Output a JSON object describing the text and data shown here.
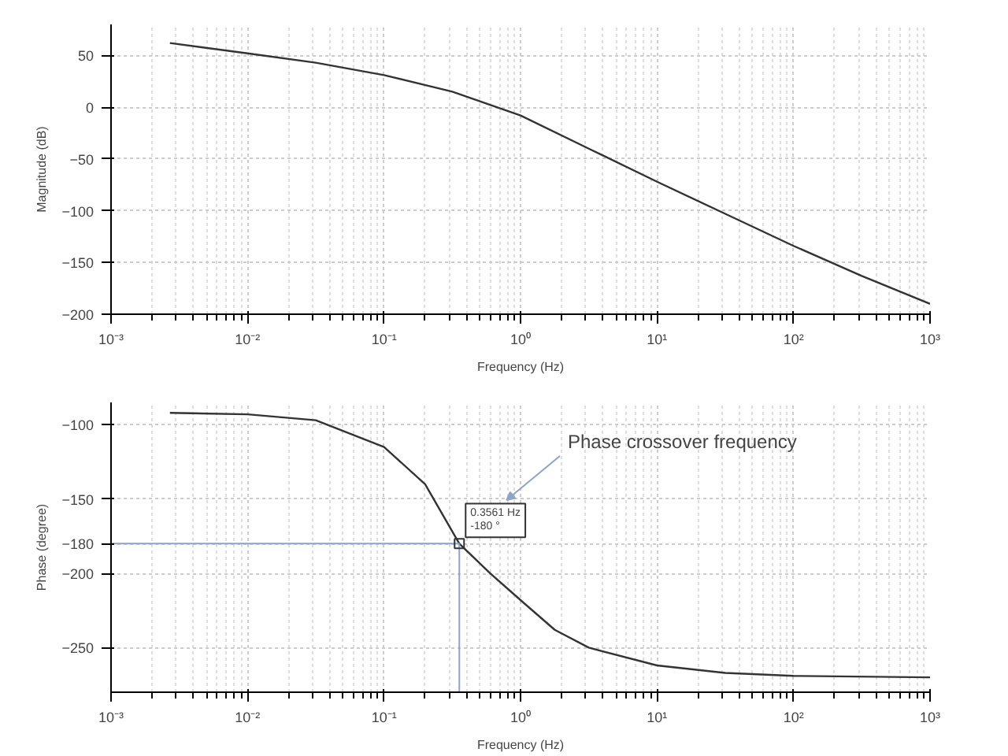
{
  "chart_data": [
    {
      "type": "line",
      "xlabel": "Frequency (Hz)",
      "ylabel": "Magnitude (dB)",
      "log": "x",
      "grid": true,
      "marker": "none",
      "line_style": "solid",
      "xlim": [
        0.001,
        1000
      ],
      "ylim": [
        -200,
        80
      ],
      "xticks": [
        {
          "value": 0.001,
          "label": "10⁻³"
        },
        {
          "value": 0.01,
          "label": "10⁻²"
        },
        {
          "value": 0.1,
          "label": "10⁻¹"
        },
        {
          "value": 1,
          "label": "10⁰"
        },
        {
          "value": 10,
          "label": "10¹"
        },
        {
          "value": 100,
          "label": "10²"
        },
        {
          "value": 1000,
          "label": "10³"
        }
      ],
      "yticks": [
        -200,
        -150,
        -100,
        -50,
        0,
        50
      ],
      "x": [
        0.0027,
        0.01,
        0.0316,
        0.1,
        0.316,
        1,
        3.16,
        10,
        31.6,
        100,
        316,
        1000
      ],
      "series": [
        {
          "color": "#333333",
          "values": [
            62,
            52,
            43,
            31,
            15,
            -8,
            -40,
            -72,
            -103,
            -134,
            -163,
            -190
          ]
        }
      ]
    },
    {
      "type": "line",
      "xlabel": "Frequency (Hz)",
      "ylabel": "Phase (degree)",
      "log": "x",
      "grid": true,
      "marker": "none",
      "line_style": "solid",
      "xlim": [
        0.001,
        1000
      ],
      "ylim": [
        -280,
        -85
      ],
      "xticks": [
        {
          "value": 0.001,
          "label": "10⁻³"
        },
        {
          "value": 0.01,
          "label": "10⁻²"
        },
        {
          "value": 0.1,
          "label": "10⁻¹"
        },
        {
          "value": 1,
          "label": "10⁰"
        },
        {
          "value": 10,
          "label": "10¹"
        },
        {
          "value": 100,
          "label": "10²"
        },
        {
          "value": 1000,
          "label": "10³"
        }
      ],
      "yticks": [
        -250,
        -200,
        -180,
        -150,
        -100
      ],
      "x": [
        0.0027,
        0.01,
        0.0316,
        0.1,
        0.2,
        0.3561,
        0.6,
        1,
        1.78,
        3.16,
        10,
        31.6,
        100,
        1000
      ],
      "series": [
        {
          "color": "#333333",
          "values": [
            -92,
            -93,
            -97,
            -115,
            -140,
            -180,
            -200,
            -218,
            -238,
            -250,
            -262,
            -267,
            -269,
            -270
          ]
        }
      ],
      "ref_lines": [
        {
          "axis": "x",
          "value": 0.3561,
          "color": "#8fa2c8"
        },
        {
          "axis": "y",
          "value": -180,
          "color": "#8fa2c8"
        }
      ],
      "annotations": [
        {
          "text": "0.3561 Hz\n-180 °",
          "x": 0.3561,
          "y": -180
        },
        "Phase crossover frequency"
      ]
    }
  ]
}
